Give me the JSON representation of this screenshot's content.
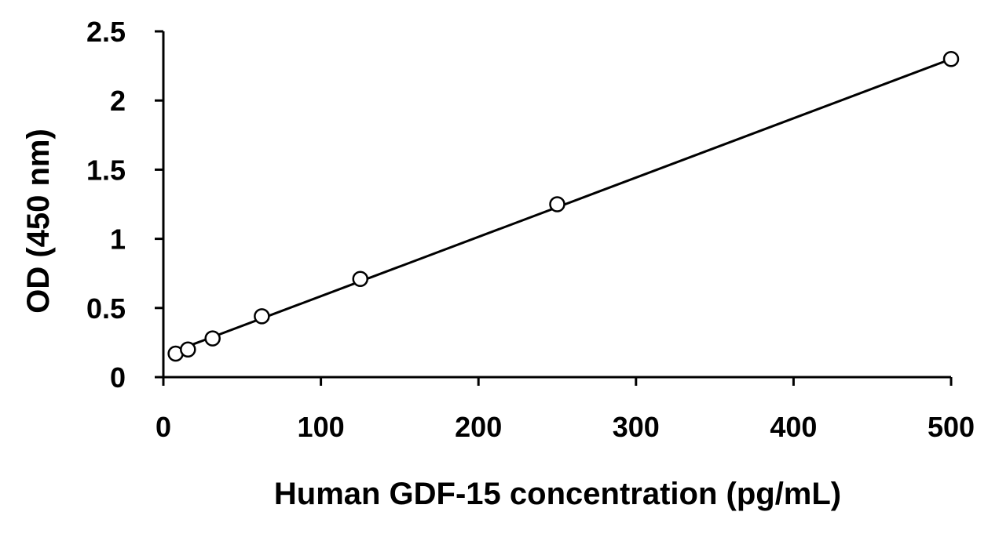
{
  "chart_data": {
    "type": "scatter",
    "title": "",
    "xlabel": "Human GDF-15 concentration (pg/mL)",
    "ylabel": "OD (450 nm)",
    "xlim": [
      0,
      500
    ],
    "ylim": [
      0,
      2.5
    ],
    "x_ticks": [
      0,
      100,
      200,
      300,
      400,
      500
    ],
    "x_tick_labels": [
      "0",
      "100",
      "200",
      "300",
      "400",
      "500"
    ],
    "y_ticks": [
      0,
      0.5,
      1,
      1.5,
      2,
      2.5
    ],
    "y_tick_labels": [
      "0",
      "0.5",
      "1",
      "1.5",
      "2",
      "2.5"
    ],
    "grid": false,
    "legend": "none",
    "series": [
      {
        "marker": "open-circle",
        "x": [
          7.8,
          15.6,
          31.25,
          62.5,
          125,
          250,
          500
        ],
        "y": [
          0.17,
          0.2,
          0.28,
          0.44,
          0.71,
          1.25,
          2.3
        ]
      }
    ],
    "trendline": {
      "type": "linear",
      "x": [
        7.8,
        500
      ],
      "y": [
        0.19,
        2.3
      ]
    },
    "colors": {
      "axis": "#000000",
      "marker_stroke": "#000000",
      "line": "#000000"
    }
  }
}
